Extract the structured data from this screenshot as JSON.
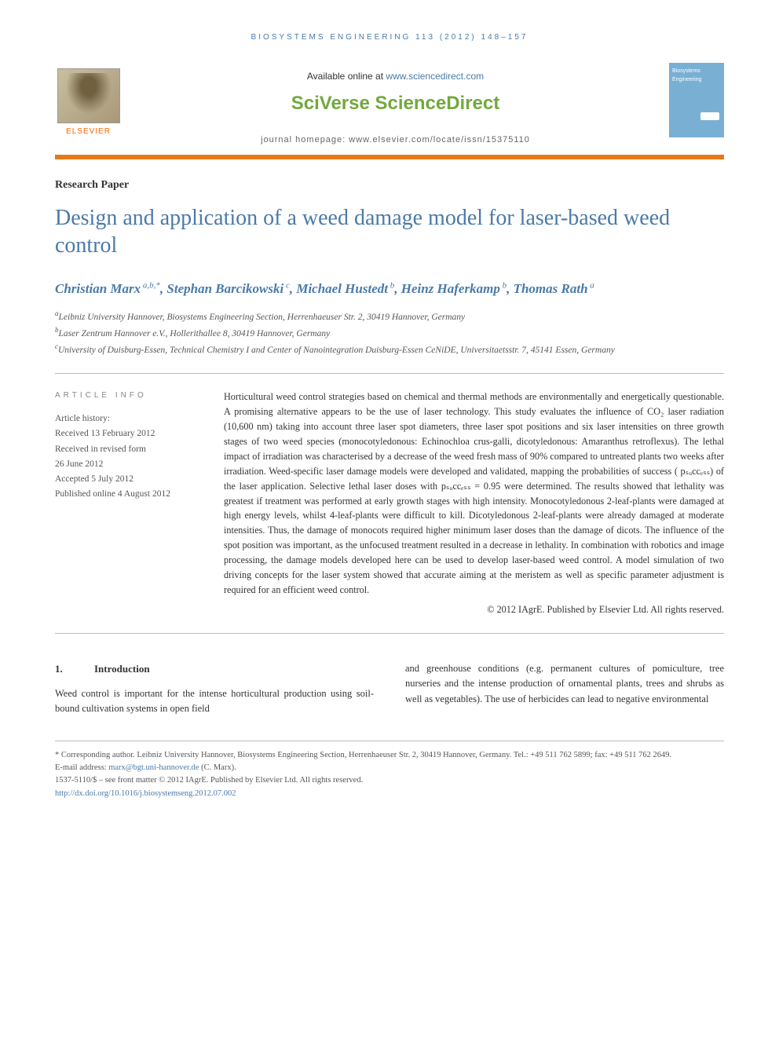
{
  "running_header": "BIOSYSTEMS ENGINEERING 113 (2012) 148–157",
  "masthead": {
    "elsevier": "ELSEVIER",
    "available_prefix": "Available online at ",
    "available_link": "www.sciencedirect.com",
    "sciverse": "SciVerse ScienceDirect",
    "homepage_prefix": "journal homepage: ",
    "homepage_url": "www.elsevier.com/locate/issn/15375110",
    "cover_line1": "Biosystems",
    "cover_line2": "Engineering"
  },
  "article_type": "Research Paper",
  "title": "Design and application of a weed damage model for laser-based weed control",
  "authors_html": "Christian Marx<sup> a,b,*</sup>, Stephan Barcikowski<sup> c</sup>, Michael Hustedt<sup> b</sup>, Heinz Haferkamp<sup> b</sup>, Thomas Rath<sup> a</sup>",
  "affiliations": {
    "a": "Leibniz University Hannover, Biosystems Engineering Section, Herrenhaeuser Str. 2, 30419 Hannover, Germany",
    "b": "Laser Zentrum Hannover e.V., Hollerithallee 8, 30419 Hannover, Germany",
    "c": "University of Duisburg-Essen, Technical Chemistry I and Center of Nanointegration Duisburg-Essen CeNiDE, Universitaetsstr. 7, 45141 Essen, Germany"
  },
  "info": {
    "heading": "ARTICLE INFO",
    "history_label": "Article history:",
    "received": "Received 13 February 2012",
    "revised1": "Received in revised form",
    "revised2": "26 June 2012",
    "accepted": "Accepted 5 July 2012",
    "published": "Published online 4 August 2012"
  },
  "abstract": "Horticultural weed control strategies based on chemical and thermal methods are environmentally and energetically questionable. A promising alternative appears to be the use of laser technology. This study evaluates the influence of CO₂ laser radiation (10,600 nm) taking into account three laser spot diameters, three laser spot positions and six laser intensities on three growth stages of two weed species (monocotyledonous: Echinochloa crus-galli, dicotyledonous: Amaranthus retroflexus). The lethal impact of irradiation was characterised by a decrease of the weed fresh mass of 90% compared to untreated plants two weeks after irradiation. Weed-specific laser damage models were developed and validated, mapping the probabilities of success ( pₛᵤccₑₛₛ) of the laser application. Selective lethal laser doses with pₛᵤccₑₛₛ = 0.95 were determined. The results showed that lethality was greatest if treatment was performed at early growth stages with high intensity. Monocotyledonous 2-leaf-plants were damaged at high energy levels, whilst 4-leaf-plants were difficult to kill. Dicotyledonous 2-leaf-plants were already damaged at moderate intensities. Thus, the damage of monocots required higher minimum laser doses than the damage of dicots. The influence of the spot position was important, as the unfocused treatment resulted in a decrease in lethality. In combination with robotics and image processing, the damage models developed here can be used to develop laser-based weed control. A model simulation of two driving concepts for the laser system showed that accurate aiming at the meristem as well as specific parameter adjustment is required for an efficient weed control.",
  "abstract_copyright": "© 2012 IAgrE. Published by Elsevier Ltd. All rights reserved.",
  "section1": {
    "num": "1.",
    "title": "Introduction",
    "col1": "Weed control is important for the intense horticultural production using soil-bound cultivation systems in open field",
    "col2": "and greenhouse conditions (e.g. permanent cultures of pomiculture, tree nurseries and the intense production of ornamental plants, trees and shrubs as well as vegetables). The use of herbicides can lead to negative environmental"
  },
  "footnotes": {
    "corr_label": "* Corresponding author.",
    "corr_text": " Leibniz University Hannover, Biosystems Engineering Section, Herrenhaeuser Str. 2, 30419 Hannover, Germany. Tel.: +49 511 762 5899; fax: +49 511 762 2649.",
    "email_label": "E-mail address: ",
    "email": "marx@bgt.uni-hannover.de",
    "email_suffix": " (C. Marx).",
    "front_matter": "1537-5110/$ – see front matter © 2012 IAgrE. Published by Elsevier Ltd. All rights reserved.",
    "doi": "http://dx.doi.org/10.1016/j.biosystemseng.2012.07.002"
  },
  "colors": {
    "link_blue": "#4a7aa8",
    "orange_rule": "#e67817",
    "sciverse_green": "#72a83e",
    "elsevier_orange": "#ff6600",
    "cover_blue": "#7aafd4"
  }
}
